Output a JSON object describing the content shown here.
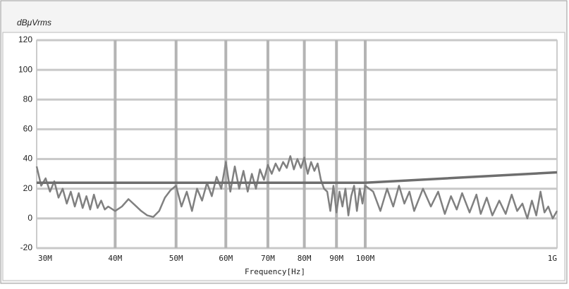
{
  "chart_data": {
    "type": "line",
    "y_label": "dBμVrms",
    "x_label": "Frequency[Hz]",
    "xscale": "log",
    "xlim": [
      30,
      1000
    ],
    "ylim": [
      -20,
      120
    ],
    "xticks": [
      {
        "value": 30,
        "label": "30M"
      },
      {
        "value": 40,
        "label": "40M"
      },
      {
        "value": 50,
        "label": "50M"
      },
      {
        "value": 60,
        "label": "60M"
      },
      {
        "value": 70,
        "label": "70M"
      },
      {
        "value": 80,
        "label": "80M"
      },
      {
        "value": 90,
        "label": "90M"
      },
      {
        "value": 100,
        "label": "100M"
      },
      {
        "value": 1000,
        "label": "1G"
      }
    ],
    "yticks": [
      -20,
      0,
      20,
      40,
      60,
      80,
      100,
      120
    ],
    "grid": true,
    "series": [
      {
        "color": "#808080",
        "x": [
          30,
          30.5,
          31,
          31.5,
          32,
          32.5,
          33,
          33.5,
          34,
          34.5,
          35,
          35.5,
          36,
          36.5,
          37,
          37.5,
          38,
          38.5,
          39,
          40,
          41,
          42,
          43,
          44,
          45,
          46,
          47,
          48,
          49,
          50,
          51,
          52,
          53,
          54,
          55,
          56,
          57,
          58,
          59,
          60,
          61,
          62,
          63,
          64,
          65,
          66,
          67,
          68,
          69,
          70,
          71,
          72,
          73,
          74,
          75,
          76,
          77,
          78,
          79,
          80,
          81,
          82,
          83,
          84,
          85,
          86,
          87,
          88,
          89,
          90,
          91,
          92,
          93,
          94,
          95,
          96,
          97,
          98,
          99,
          100,
          110,
          120,
          130,
          140,
          150,
          160,
          170,
          180,
          200,
          220,
          240,
          260,
          280,
          300,
          320,
          350,
          380,
          400,
          430,
          460,
          500,
          540,
          580,
          620,
          660,
          700,
          740,
          780,
          820,
          860,
          900,
          950,
          1000
        ],
        "values": [
          35,
          22,
          27,
          18,
          25,
          14,
          20,
          10,
          18,
          8,
          17,
          7,
          15,
          6,
          16,
          7,
          12,
          6,
          8,
          5,
          8,
          13,
          9,
          5,
          2,
          1,
          5,
          14,
          19,
          22,
          8,
          18,
          5,
          20,
          12,
          24,
          15,
          28,
          20,
          38,
          18,
          35,
          20,
          32,
          18,
          30,
          20,
          33,
          26,
          36,
          30,
          37,
          32,
          38,
          34,
          42,
          33,
          40,
          34,
          41,
          30,
          38,
          32,
          37,
          26,
          20,
          18,
          5,
          22,
          4,
          18,
          8,
          20,
          2,
          15,
          22,
          5,
          20,
          10,
          22,
          18,
          5,
          20,
          8,
          22,
          10,
          18,
          5,
          20,
          8,
          18,
          3,
          15,
          6,
          17,
          4,
          16,
          3,
          14,
          2,
          12,
          3,
          16,
          5,
          10,
          0,
          12,
          2,
          18,
          4,
          8,
          0,
          5
        ]
      },
      {
        "color": "#6e6e6e",
        "x": [
          30,
          100,
          1000
        ],
        "values": [
          24,
          24,
          31
        ]
      }
    ]
  }
}
